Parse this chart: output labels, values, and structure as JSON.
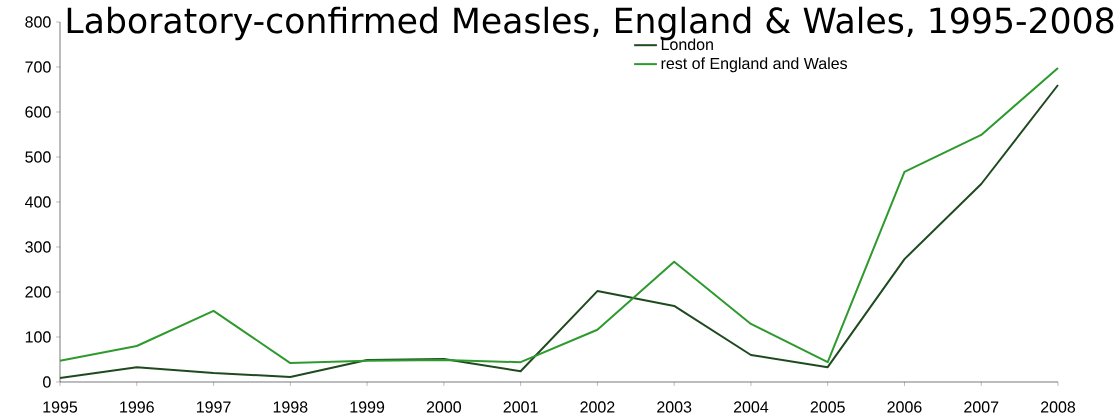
{
  "chart_data": {
    "type": "line",
    "title": "Laboratory-confirmed Measles, England & Wales, 1995-2008",
    "x": [
      1995,
      1996,
      1997,
      1998,
      1999,
      2000,
      2001,
      2002,
      2003,
      2004,
      2005,
      2006,
      2007,
      2008
    ],
    "series": [
      {
        "name": "London",
        "color": "#1f4a1f",
        "values": [
          9,
          33,
          20,
          11,
          49,
          51,
          24,
          202,
          169,
          60,
          33,
          273,
          440,
          660
        ]
      },
      {
        "name": "rest of England and Wales",
        "color": "#2e9a2e",
        "values": [
          47,
          80,
          158,
          42,
          47,
          49,
          44,
          116,
          267,
          129,
          44,
          467,
          549,
          698
        ]
      }
    ],
    "xlim": [
      1995,
      2008
    ],
    "xticks": [
      1995,
      1996,
      1997,
      1998,
      1999,
      2000,
      2001,
      2002,
      2003,
      2004,
      2005,
      2006,
      2007,
      2008
    ],
    "ylim": [
      0,
      800
    ],
    "yticks": [
      0,
      100,
      200,
      300,
      400,
      500,
      600,
      700,
      800
    ],
    "grid": false,
    "legend": "top right",
    "marker": "none",
    "line_style": "solid"
  }
}
